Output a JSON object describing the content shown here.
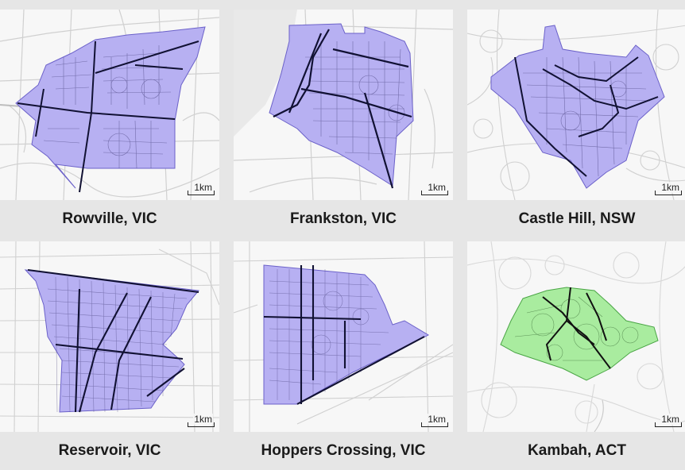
{
  "colors": {
    "background": "#e6e6e6",
    "map_background": "#f7f7f7",
    "road_minor": "#d0d0d0",
    "road_major": "#bdbdbd",
    "suburb_purple_fill": "#b7b0f2",
    "suburb_purple_edge": "#6b61c9",
    "suburb_green_fill": "#a9ec9f",
    "suburb_green_edge": "#4aa545",
    "suburb_streets": "#3b3570",
    "suburb_streets_green": "#2c5a28",
    "arterial": "#111133"
  },
  "panels": [
    {
      "caption": "Rowville, VIC",
      "scale_label": "1km",
      "highlight": "purple"
    },
    {
      "caption": "Frankston, VIC",
      "scale_label": "1km",
      "highlight": "purple"
    },
    {
      "caption": "Castle Hill, NSW",
      "scale_label": "1km",
      "highlight": "purple"
    },
    {
      "caption": "Reservoir, VIC",
      "scale_label": "1km",
      "highlight": "purple"
    },
    {
      "caption": "Hoppers Crossing, VIC",
      "scale_label": "1km",
      "highlight": "purple"
    },
    {
      "caption": "Kambah, ACT",
      "scale_label": "1km",
      "highlight": "green"
    }
  ]
}
